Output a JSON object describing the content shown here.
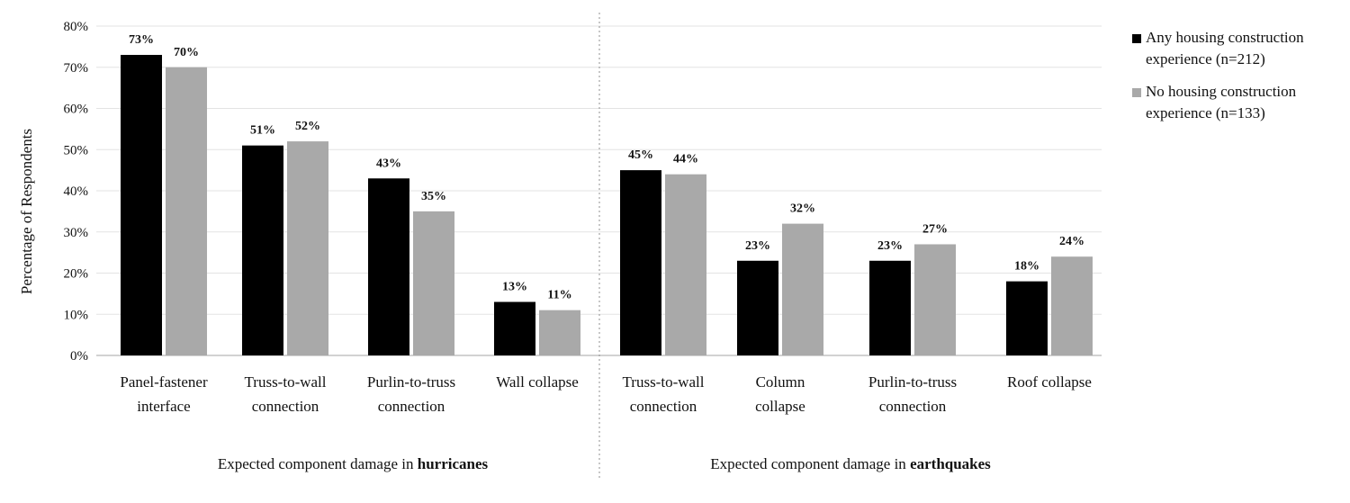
{
  "chart_data": {
    "type": "bar",
    "ylabel": "Percentage of Respondents",
    "ylim": [
      0,
      80
    ],
    "yticks": [
      "0%",
      "10%",
      "20%",
      "30%",
      "40%",
      "50%",
      "60%",
      "70%",
      "80%"
    ],
    "grid": true,
    "legend_position": "right",
    "colors": {
      "series_1": "#000000",
      "series_2": "#a9a9a9",
      "grid": "#e3e3e3",
      "axis": "#b8b8b8",
      "divider": "#8f8f8f"
    },
    "series": [
      {
        "name_lines": [
          "Any housing construction",
          "experience (n=212)"
        ],
        "values": [
          73,
          51,
          43,
          13,
          45,
          23,
          23,
          18
        ]
      },
      {
        "name_lines": [
          "No housing construction",
          "experience (n=133)"
        ],
        "values": [
          70,
          52,
          35,
          11,
          44,
          32,
          27,
          24
        ]
      }
    ],
    "value_labels": [
      [
        "73%",
        "51%",
        "43%",
        "13%",
        "45%",
        "23%",
        "23%",
        "18%"
      ],
      [
        "70%",
        "52%",
        "35%",
        "11%",
        "44%",
        "32%",
        "27%",
        "24%"
      ]
    ],
    "category_labels": [
      [
        "Panel-fastener",
        "interface"
      ],
      [
        "Truss-to-wall",
        "connection"
      ],
      [
        "Purlin-to-truss",
        "connection"
      ],
      [
        "Wall collapse"
      ],
      [
        "Truss-to-wall",
        "connection"
      ],
      [
        "Column",
        "collapse"
      ],
      [
        "Purlin-to-truss",
        "connection"
      ],
      [
        "Roof collapse"
      ]
    ],
    "groups": [
      {
        "caption_prefix": "Expected component damage in ",
        "caption_bold": "hurricanes"
      },
      {
        "caption_prefix": "Expected component damage in ",
        "caption_bold": "earthquakes"
      }
    ]
  }
}
